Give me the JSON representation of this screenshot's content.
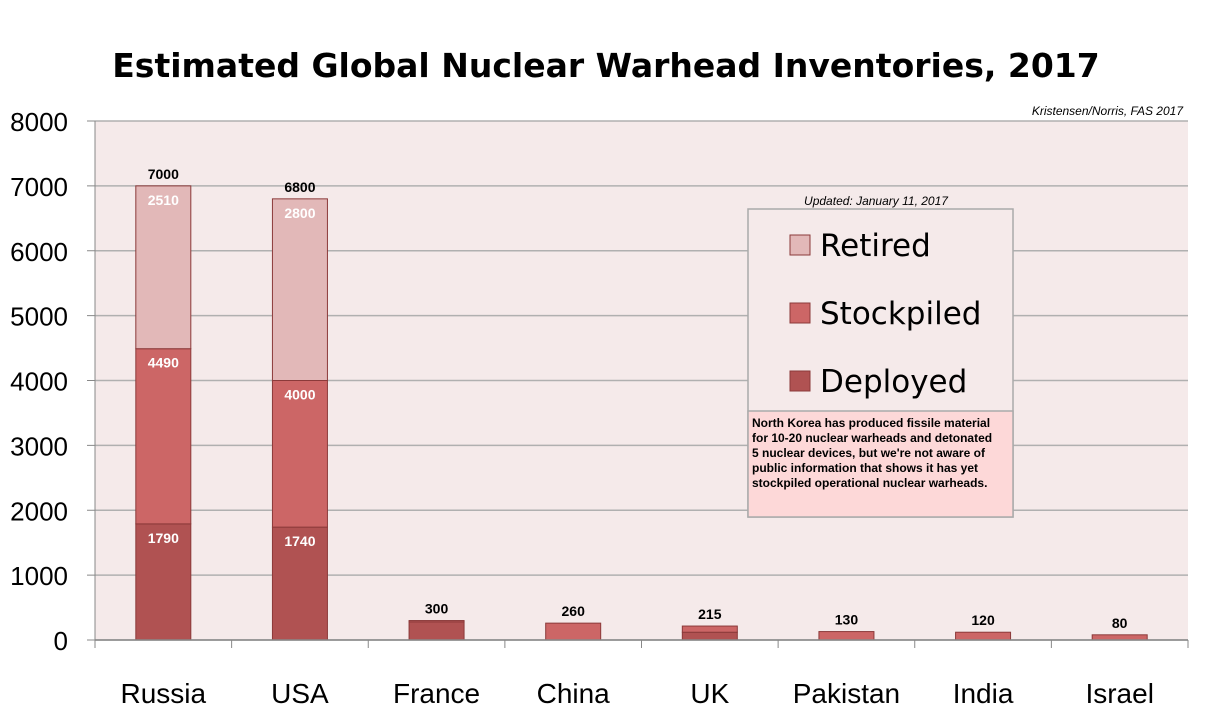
{
  "chart_data": {
    "type": "bar",
    "stacked": true,
    "title": "Estimated Global Nuclear Warhead Inventories, 2017",
    "source": "Kristensen/Norris, FAS 2017",
    "updated": "Updated: January 11, 2017",
    "categories": [
      "Russia",
      "USA",
      "France",
      "China",
      "UK",
      "Pakistan",
      "India",
      "Israel"
    ],
    "totals": [
      7000,
      6800,
      300,
      260,
      215,
      130,
      120,
      80
    ],
    "series": [
      {
        "name": "Deployed",
        "color": "#b05252",
        "values": [
          1790,
          1740,
          280,
          0,
          120,
          0,
          0,
          0
        ]
      },
      {
        "name": "Stockpiled",
        "color": "#cc6666",
        "values": [
          2700,
          2260,
          20,
          260,
          95,
          130,
          120,
          80
        ]
      },
      {
        "name": "Retired",
        "color": "#e2b8b8",
        "values": [
          2510,
          2800,
          0,
          0,
          0,
          0,
          0,
          0
        ]
      }
    ],
    "segment_labels": {
      "Russia": {
        "Deployed": "1790",
        "Stockpiled": "4490",
        "Retired": "2510"
      },
      "USA": {
        "Deployed": "1740",
        "Stockpiled": "4000",
        "Retired": "2800"
      }
    },
    "ylim": [
      0,
      8000
    ],
    "yticks": [
      0,
      1000,
      2000,
      3000,
      4000,
      5000,
      6000,
      7000,
      8000
    ],
    "grid": true,
    "legend_placement": "upper-right",
    "legend_entries": [
      "Retired",
      "Stockpiled",
      "Deployed"
    ],
    "note": "North Korea has produced fissile material for 10-20 nuclear warheads and detonated 5 nuclear devices, but we're not aware of public information that shows it has yet stockpiled operational nuclear warheads.",
    "colors": {
      "plot_background": "#f5eaea",
      "gridline": "#b0b0b0",
      "note_background": "#fdd8d8",
      "bar_border": "#8b3a3a"
    }
  }
}
